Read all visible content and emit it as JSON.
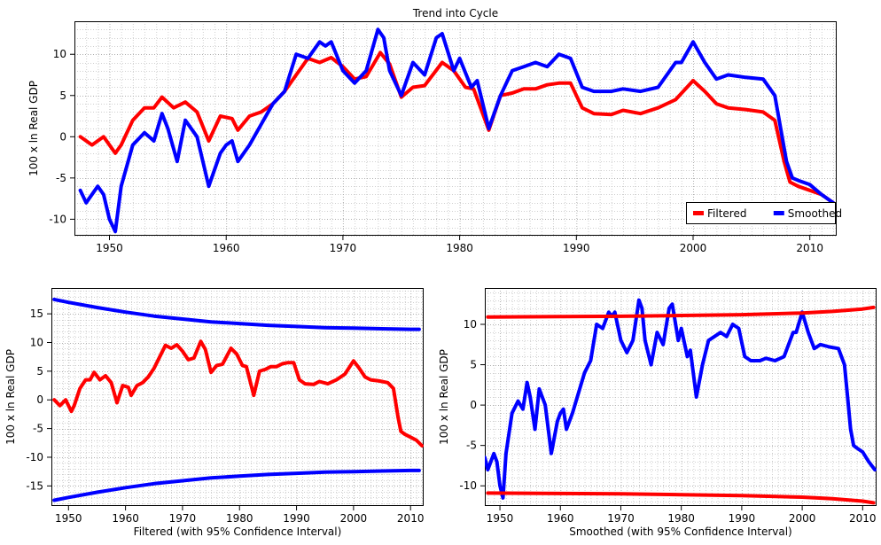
{
  "chart_data": [
    {
      "type": "line",
      "title": "Trend into Cycle",
      "xlabel": "",
      "ylabel": "100 x ln Real GDP",
      "xlim": [
        1947,
        2012.3
      ],
      "ylim": [
        -12,
        14
      ],
      "xticks": [
        1950,
        1960,
        1970,
        1980,
        1990,
        2000,
        2010
      ],
      "yticks": [
        -10,
        -5,
        0,
        5,
        10
      ],
      "grid": true,
      "legend": "bottom-right",
      "series": [
        {
          "name": "Filtered",
          "color": "#ff0000",
          "x": [
            1947.5,
            1948.5,
            1949.5,
            1950.5,
            1951.0,
            1952.0,
            1953.0,
            1953.8,
            1954.5,
            1955.5,
            1956.5,
            1957.5,
            1958.5,
            1959.5,
            1960.5,
            1961.0,
            1962.0,
            1963.0,
            1964.0,
            1965.0,
            1966.0,
            1967.0,
            1968.0,
            1969.0,
            1970.0,
            1971.0,
            1972.0,
            1973.2,
            1974.0,
            1975.0,
            1976.0,
            1977.0,
            1978.5,
            1979.5,
            1980.5,
            1981.2,
            1982.5,
            1983.5,
            1984.5,
            1985.5,
            1986.5,
            1987.5,
            1988.5,
            1989.5,
            1990.5,
            1991.5,
            1993.0,
            1994.0,
            1995.5,
            1997.0,
            1998.5,
            2000.0,
            2001.0,
            2002.0,
            2003.0,
            2004.5,
            2006.0,
            2007.0,
            2007.8,
            2008.3,
            2009.0,
            2010.0,
            2011.0,
            2012.0
          ],
          "y": [
            0,
            -1,
            0,
            -2,
            -1,
            2,
            3.5,
            3.5,
            4.8,
            3.5,
            4.2,
            3,
            -0.5,
            2.5,
            2.2,
            0.8,
            2.5,
            3,
            4,
            5.5,
            7.5,
            9.5,
            9,
            9.6,
            8.5,
            7,
            7.3,
            10.2,
            8.8,
            4.8,
            6,
            6.2,
            9,
            8,
            6,
            5.8,
            0.8,
            5,
            5.3,
            5.8,
            5.8,
            6.3,
            6.5,
            6.5,
            3.5,
            2.8,
            2.7,
            3.2,
            2.8,
            3.5,
            4.5,
            6.8,
            5.5,
            4,
            3.5,
            3.3,
            3,
            2,
            -3,
            -5.5,
            -6,
            -6.5,
            -7,
            -8
          ]
        },
        {
          "name": "Smoothed",
          "color": "#0000ff",
          "x": [
            1947.5,
            1948.0,
            1949.0,
            1949.5,
            1950.0,
            1950.5,
            1951.0,
            1952.0,
            1953.0,
            1953.8,
            1954.5,
            1955.0,
            1955.8,
            1956.5,
            1957.5,
            1958.0,
            1958.5,
            1959.5,
            1960.0,
            1960.5,
            1961.0,
            1962.0,
            1963.0,
            1964.0,
            1965.0,
            1966.0,
            1967.0,
            1968.0,
            1968.5,
            1969.0,
            1970.0,
            1971.0,
            1972.0,
            1973.0,
            1973.5,
            1974.0,
            1975.0,
            1976.0,
            1977.0,
            1978.0,
            1978.5,
            1979.5,
            1980.0,
            1981.0,
            1981.5,
            1982.5,
            1983.5,
            1984.5,
            1985.5,
            1986.5,
            1987.5,
            1988.5,
            1989.5,
            1990.5,
            1991.5,
            1993.0,
            1994.0,
            1995.5,
            1997.0,
            1998.5,
            1999.0,
            2000.0,
            2001.0,
            2002.0,
            2003.0,
            2004.5,
            2006.0,
            2007.0,
            2007.5,
            2008.0,
            2008.5,
            2009.0,
            2010.0,
            2011.0,
            2012.0
          ],
          "y": [
            -6.5,
            -8,
            -6,
            -7,
            -10,
            -11.5,
            -6,
            -1,
            0.5,
            -0.5,
            2.8,
            1,
            -3,
            2,
            0,
            -3,
            -6,
            -2,
            -1,
            -0.5,
            -3,
            -1,
            1.5,
            4,
            5.5,
            10,
            9.5,
            11.5,
            11,
            11.5,
            8,
            6.5,
            8,
            13,
            12,
            8,
            5,
            9,
            7.5,
            12,
            12.5,
            8,
            9.5,
            6,
            6.8,
            1,
            5,
            8,
            8.5,
            9,
            8.5,
            10,
            9.5,
            6,
            5.5,
            5.5,
            5.8,
            5.5,
            6,
            9,
            9,
            11.5,
            9,
            7,
            7.5,
            7.2,
            7,
            5,
            1,
            -3,
            -5,
            -5.3,
            -5.8,
            -7,
            -8
          ]
        }
      ]
    },
    {
      "type": "line",
      "title": "",
      "xlabel": "Filtered (with 95% Confidence Interval)",
      "ylabel": "100 x ln Real GDP",
      "xlim": [
        1947,
        2012.3
      ],
      "ylim": [
        -18.5,
        19.5
      ],
      "xticks": [
        1950,
        1960,
        1970,
        1980,
        1990,
        2000,
        2010
      ],
      "yticks": [
        -15,
        -10,
        -5,
        0,
        5,
        10,
        15
      ],
      "grid": true,
      "series": [
        {
          "ref": "filtered",
          "color": "#ff0000"
        },
        {
          "band": "upper",
          "color": "#0000ff",
          "x": [
            1947.5,
            1950,
            1955,
            1960,
            1965,
            1970,
            1975,
            1980,
            1985,
            1990,
            1995,
            2000,
            2005,
            2010,
            2011.5
          ],
          "y": [
            17.5,
            17,
            16.1,
            15.3,
            14.6,
            14.1,
            13.6,
            13.3,
            13,
            12.8,
            12.6,
            12.5,
            12.4,
            12.3,
            12.3
          ]
        },
        {
          "band": "lower",
          "color": "#0000ff",
          "x": [
            1947.5,
            1950,
            1955,
            1960,
            1965,
            1970,
            1975,
            1980,
            1985,
            1990,
            1995,
            2000,
            2005,
            2010,
            2011.5
          ],
          "y": [
            -17.5,
            -17,
            -16.1,
            -15.3,
            -14.6,
            -14.1,
            -13.6,
            -13.3,
            -13,
            -12.8,
            -12.6,
            -12.5,
            -12.4,
            -12.3,
            -12.3
          ]
        }
      ]
    },
    {
      "type": "line",
      "title": "",
      "xlabel": "Smoothed (with 95% Confidence Interval)",
      "ylabel": "100 x ln Real GDP",
      "xlim": [
        1947.5,
        2012.3
      ],
      "ylim": [
        -12.5,
        14.5
      ],
      "xticks": [
        1950,
        1960,
        1970,
        1980,
        1990,
        2000,
        2010
      ],
      "yticks": [
        -10,
        -5,
        0,
        5,
        10
      ],
      "grid": true,
      "series": [
        {
          "ref": "smoothed",
          "color": "#0000ff"
        },
        {
          "band": "upper",
          "color": "#ff0000",
          "x": [
            1948,
            1960,
            1970,
            1980,
            1990,
            2000,
            2005,
            2010,
            2011.8
          ],
          "y": [
            10.9,
            10.95,
            11.0,
            11.1,
            11.2,
            11.4,
            11.6,
            11.9,
            12.1
          ]
        },
        {
          "band": "lower",
          "color": "#ff0000",
          "x": [
            1948,
            1960,
            1970,
            1980,
            1990,
            2000,
            2005,
            2010,
            2011.8
          ],
          "y": [
            -10.9,
            -10.95,
            -11.0,
            -11.1,
            -11.2,
            -11.4,
            -11.6,
            -11.9,
            -12.1
          ]
        }
      ]
    }
  ]
}
